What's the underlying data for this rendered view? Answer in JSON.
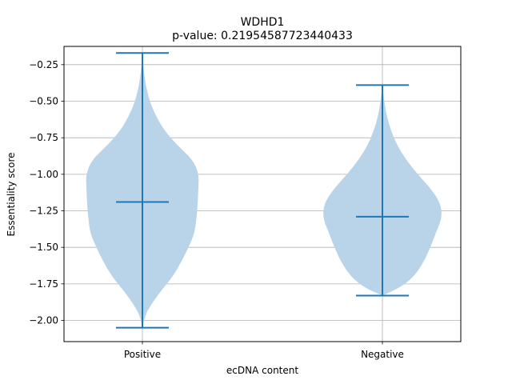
{
  "chart_data": {
    "type": "violin",
    "title": "WDHD1",
    "subtitle": "p-value: 0.21954587723440433",
    "xlabel": "ecDNA content",
    "ylabel": "Essentiality score",
    "categories": [
      "Positive",
      "Negative"
    ],
    "ylim": [
      -2.145,
      -0.125
    ],
    "yticks": [
      -2.0,
      -1.75,
      -1.5,
      -1.25,
      -1.0,
      -0.75,
      -0.5,
      -0.25
    ],
    "ytick_labels": [
      "−2.00",
      "−1.75",
      "−1.50",
      "−1.25",
      "−1.00",
      "−0.75",
      "−0.50",
      "−0.25"
    ],
    "grid": true,
    "colors": {
      "violin_fill": "#b9d4e9",
      "lines": "#1f77b4",
      "grid": "#b0b0b0"
    },
    "violins": [
      {
        "category": "Positive",
        "min": -2.05,
        "median": -1.19,
        "max": -0.17,
        "density_profile": [
          [
            -2.05,
            0.0
          ],
          [
            -1.97,
            0.04
          ],
          [
            -1.9,
            0.13
          ],
          [
            -1.8,
            0.3
          ],
          [
            -1.7,
            0.5
          ],
          [
            -1.6,
            0.64
          ],
          [
            -1.5,
            0.76
          ],
          [
            -1.4,
            0.86
          ],
          [
            -1.3,
            0.89
          ],
          [
            -1.2,
            0.91
          ],
          [
            -1.1,
            0.92
          ],
          [
            -1.0,
            0.93
          ],
          [
            -0.9,
            0.83
          ],
          [
            -0.8,
            0.57
          ],
          [
            -0.7,
            0.36
          ],
          [
            -0.6,
            0.22
          ],
          [
            -0.5,
            0.12
          ],
          [
            -0.4,
            0.06
          ],
          [
            -0.3,
            0.025
          ],
          [
            -0.2,
            0.005
          ],
          [
            -0.17,
            0.0
          ]
        ]
      },
      {
        "category": "Negative",
        "min": -1.83,
        "median": -1.29,
        "max": -0.39,
        "density_profile": [
          [
            -1.83,
            0.0
          ],
          [
            -1.78,
            0.28
          ],
          [
            -1.7,
            0.52
          ],
          [
            -1.6,
            0.68
          ],
          [
            -1.5,
            0.79
          ],
          [
            -1.4,
            0.88
          ],
          [
            -1.3,
            0.98
          ],
          [
            -1.2,
            0.96
          ],
          [
            -1.1,
            0.8
          ],
          [
            -1.0,
            0.58
          ],
          [
            -0.9,
            0.39
          ],
          [
            -0.8,
            0.24
          ],
          [
            -0.7,
            0.14
          ],
          [
            -0.6,
            0.07
          ],
          [
            -0.5,
            0.03
          ],
          [
            -0.39,
            0.0
          ]
        ]
      }
    ]
  }
}
